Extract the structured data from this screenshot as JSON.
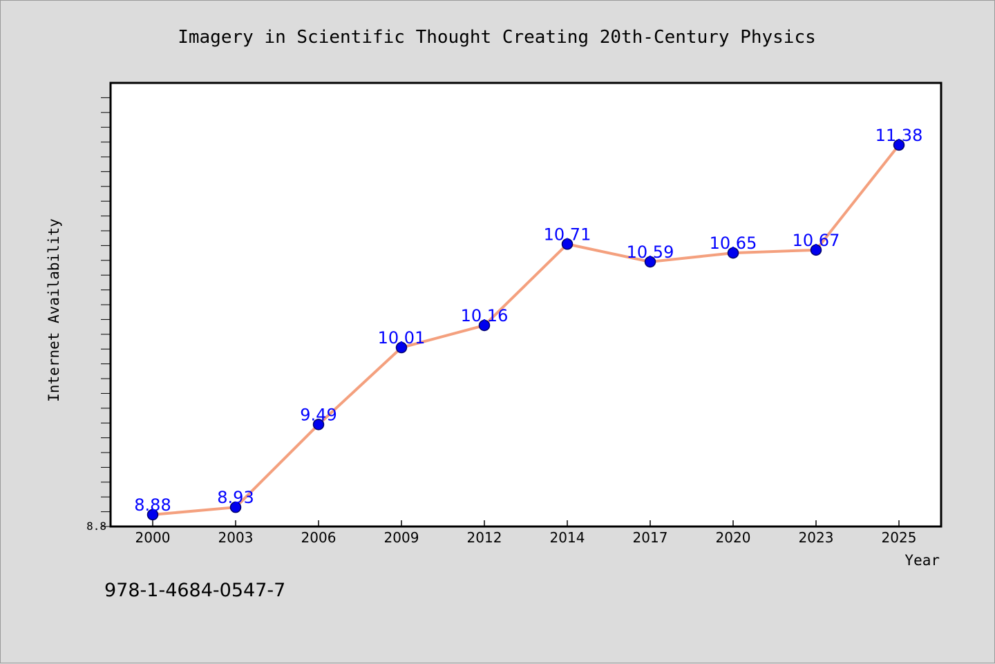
{
  "chart_data": {
    "type": "line",
    "title": "Imagery in Scientific Thought Creating 20th-Century Physics",
    "xlabel": "Year",
    "ylabel": "Internet Availability",
    "categories": [
      "2000",
      "2003",
      "2006",
      "2009",
      "2012",
      "2014",
      "2017",
      "2020",
      "2023",
      "2025"
    ],
    "series": [
      {
        "values": [
          8.88,
          8.93,
          9.49,
          10.01,
          10.16,
          10.71,
          10.59,
          10.65,
          10.67,
          11.38
        ],
        "labels": [
          "8.88",
          "8.93",
          "9.49",
          "10.01",
          "10.16",
          "10.71",
          "10.59",
          "10.65",
          "10.67",
          "11.38"
        ],
        "line_color": "#f4a07e",
        "marker_color": "#0000ee",
        "label_color": "#0000ff"
      }
    ],
    "y_tick_label": "8.8",
    "ylim": [
      8.8,
      11.8
    ],
    "grid": false,
    "legend": "none"
  },
  "footer": {
    "isbn": "978-1-4684-0547-7"
  }
}
